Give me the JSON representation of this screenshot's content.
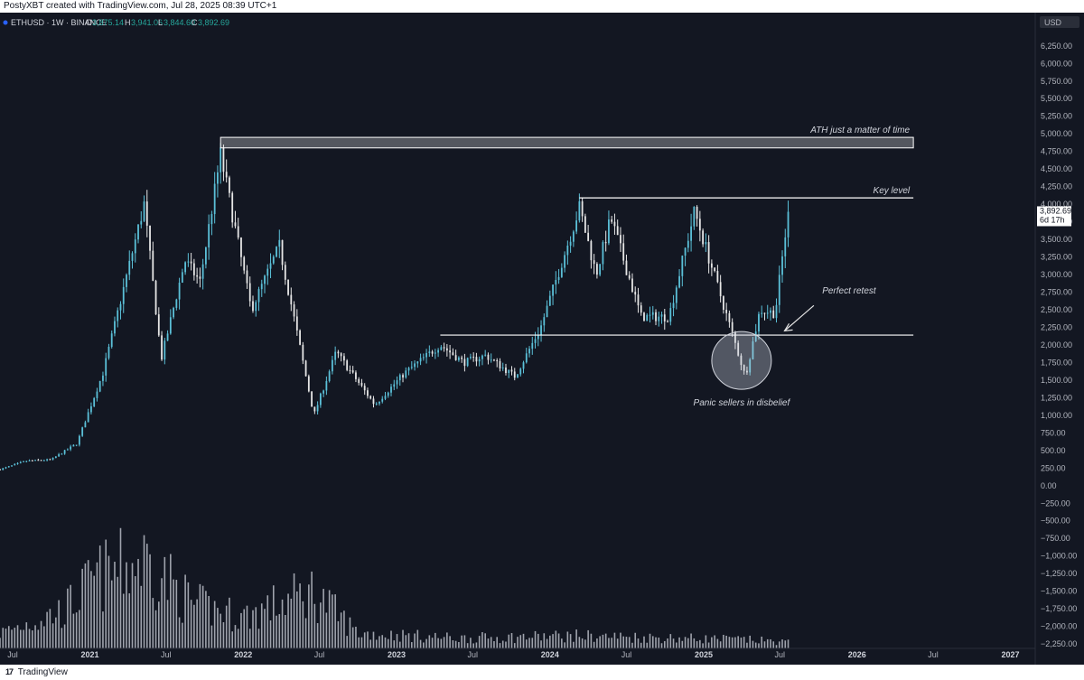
{
  "header": {
    "created_by": "PostyXBT created with TradingView.com, Jul 28, 2025 08:39 UTC+1"
  },
  "legend": {
    "symbol": "ETHUSD · 1W · BINANCE",
    "open_label": "O",
    "open": "3,875.14",
    "high_label": "H",
    "high": "3,941.06",
    "low_label": "L",
    "low": "3,844.60",
    "close_label": "C",
    "close": "3,892.69"
  },
  "price_axis": {
    "currency": "USD",
    "current_price": "3,892.69",
    "countdown": "6d 17h"
  },
  "footer": {
    "brand": "TradingView"
  },
  "colors": {
    "background": "#131722",
    "up": "#5bc0d8",
    "down": "#e6e6e6",
    "lines": "#ffffff",
    "volume": "#b8bcc6"
  },
  "chart_data": {
    "type": "candlestick",
    "symbol": "ETHUSD",
    "interval": "1W",
    "exchange": "BINANCE",
    "y_axis": {
      "ticks": [
        "6,250.00",
        "6,000.00",
        "5,750.00",
        "5,500.00",
        "5,250.00",
        "5,000.00",
        "4,750.00",
        "4,500.00",
        "4,250.00",
        "4,000.00",
        "3,750.00",
        "3,500.00",
        "3,250.00",
        "3,000.00",
        "2,750.00",
        "2,500.00",
        "2,250.00",
        "2,000.00",
        "1,750.00",
        "1,500.00",
        "1,250.00",
        "1,000.00",
        "750.00",
        "500.00",
        "250.00",
        "0.00",
        "−250.00",
        "−500.00",
        "−750.00",
        "−1,000.00",
        "−1,250.00",
        "−1,500.00",
        "−1,750.00",
        "−2,000.00",
        "−2,250.00"
      ],
      "range": [
        -2300,
        6350
      ]
    },
    "x_axis": {
      "range": [
        "2020-06-01",
        "2027-03-01"
      ],
      "ticks": [
        {
          "label": "Jul",
          "date": "2020-07-01",
          "bold": false
        },
        {
          "label": "2021",
          "date": "2021-01-01",
          "bold": true
        },
        {
          "label": "Jul",
          "date": "2021-07-01",
          "bold": false
        },
        {
          "label": "2022",
          "date": "2022-01-01",
          "bold": true
        },
        {
          "label": "Jul",
          "date": "2022-07-01",
          "bold": false
        },
        {
          "label": "2023",
          "date": "2023-01-01",
          "bold": true
        },
        {
          "label": "Jul",
          "date": "2023-07-01",
          "bold": false
        },
        {
          "label": "2024",
          "date": "2024-01-01",
          "bold": true
        },
        {
          "label": "Jul",
          "date": "2024-07-01",
          "bold": false
        },
        {
          "label": "2025",
          "date": "2025-01-01",
          "bold": true
        },
        {
          "label": "Jul",
          "date": "2025-07-01",
          "bold": false
        },
        {
          "label": "2026",
          "date": "2026-01-01",
          "bold": true
        },
        {
          "label": "Jul",
          "date": "2026-07-01",
          "bold": false
        },
        {
          "label": "2027",
          "date": "2027-01-01",
          "bold": true
        }
      ]
    },
    "price_path": [
      [
        "2020-06-01",
        230
      ],
      [
        "2020-08-01",
        350
      ],
      [
        "2020-10-01",
        370
      ],
      [
        "2020-12-01",
        600
      ],
      [
        "2021-02-01",
        1600
      ],
      [
        "2021-05-10",
        4000
      ],
      [
        "2021-06-20",
        1800
      ],
      [
        "2021-08-15",
        3200
      ],
      [
        "2021-09-20",
        2900
      ],
      [
        "2021-11-08",
        4700
      ],
      [
        "2022-01-20",
        2500
      ],
      [
        "2022-03-28",
        3400
      ],
      [
        "2022-06-18",
        1000
      ],
      [
        "2022-08-10",
        1900
      ],
      [
        "2022-11-10",
        1150
      ],
      [
        "2023-01-20",
        1600
      ],
      [
        "2023-04-15",
        2000
      ],
      [
        "2023-06-10",
        1750
      ],
      [
        "2023-08-01",
        1850
      ],
      [
        "2023-10-10",
        1550
      ],
      [
        "2023-12-10",
        2250
      ],
      [
        "2024-03-11",
        3950
      ],
      [
        "2024-04-20",
        3000
      ],
      [
        "2024-05-25",
        3800
      ],
      [
        "2024-08-05",
        2400
      ],
      [
        "2024-10-10",
        2400
      ],
      [
        "2024-12-10",
        3900
      ],
      [
        "2025-02-10",
        2700
      ],
      [
        "2025-04-10",
        1550
      ],
      [
        "2025-05-15",
        2500
      ],
      [
        "2025-06-20",
        2450
      ],
      [
        "2025-07-21",
        3892
      ]
    ],
    "volume_profile": [
      [
        "2020-06-01",
        0.12
      ],
      [
        "2020-11-01",
        0.3
      ],
      [
        "2021-01-15",
        0.55
      ],
      [
        "2021-05-15",
        0.7
      ],
      [
        "2021-09-01",
        0.35
      ],
      [
        "2022-01-01",
        0.25
      ],
      [
        "2022-06-15",
        0.45
      ],
      [
        "2022-10-01",
        0.12
      ],
      [
        "2023-06-01",
        0.08
      ],
      [
        "2024-03-01",
        0.1
      ],
      [
        "2025-04-01",
        0.07
      ],
      [
        "2025-07-21",
        0.05
      ]
    ],
    "levels": [
      {
        "name": "ath-zone",
        "type": "zone",
        "from": 4800,
        "to": 4950,
        "start": "2021-11-08",
        "end": "2026-05-15",
        "label": "ATH just a matter of time"
      },
      {
        "name": "key-level",
        "type": "line",
        "value": 4090,
        "start": "2024-03-11",
        "end": "2026-05-15",
        "label": "Key level"
      },
      {
        "name": "support",
        "type": "line",
        "value": 2140,
        "start": "2023-04-15",
        "end": "2026-05-15",
        "label": ""
      }
    ],
    "annotations": [
      {
        "name": "perfect-retest",
        "label": "Perfect retest",
        "date": "2025-11-15",
        "value": 2750
      },
      {
        "name": "panic-sellers",
        "label": "Panic sellers in disbelief",
        "date": "2025-04-15",
        "value": 1750
      }
    ]
  }
}
